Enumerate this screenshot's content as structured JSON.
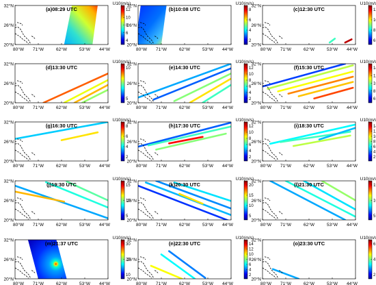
{
  "figure": {
    "lat_ticks": [
      "32°N",
      "26°N",
      "20°N"
    ],
    "lon_ticks": [
      "80°W",
      "71°W",
      "62°W",
      "53°W",
      "44°W"
    ],
    "colorbar_label": "U10(m/s)"
  },
  "chart_data": [
    {
      "type": "map-swath",
      "title": "(a)08:29 UTC",
      "lon_range": [
        -80,
        -44
      ],
      "lat_range": [
        20,
        32
      ],
      "colorbar_ticks": [
        "4",
        "6",
        "8",
        "10",
        "12"
      ],
      "swaths": [
        {
          "kind": "block",
          "corners": [
            [
              -58,
              32
            ],
            [
              -48,
              32
            ],
            [
              -50,
              20
            ],
            [
              -61,
              20
            ]
          ],
          "wind_range": [
            4,
            13
          ]
        }
      ]
    },
    {
      "type": "map-swath",
      "title": "(b)10:08 UTC",
      "lon_range": [
        -80,
        -44
      ],
      "lat_range": [
        20,
        32
      ],
      "colorbar_ticks": [
        "2",
        "4",
        "6",
        "8"
      ],
      "swaths": [
        {
          "kind": "block",
          "corners": [
            [
              -79,
              32
            ],
            [
              -69,
              32
            ],
            [
              -71,
              20
            ],
            [
              -81,
              20
            ]
          ],
          "wind_range": [
            1,
            9
          ]
        }
      ]
    },
    {
      "type": "map-swath",
      "title": "(c)12:30 UTC",
      "lon_range": [
        -80,
        -44
      ],
      "lat_range": [
        20,
        32
      ],
      "colorbar_ticks": [
        "6",
        "8",
        "10",
        "12"
      ],
      "swaths": [
        {
          "kind": "line",
          "from": [
            -54,
            20.6
          ],
          "to": [
            -52,
            21.8
          ],
          "wind": 6
        },
        {
          "kind": "line",
          "from": [
            -48,
            20.6
          ],
          "to": [
            -45.5,
            21.6
          ],
          "wind": 13
        }
      ]
    },
    {
      "type": "map-swath",
      "title": "(d)13:30 UTC",
      "lon_range": [
        -80,
        -44
      ],
      "lat_range": [
        20,
        32
      ],
      "colorbar_ticks": [
        "5",
        "10"
      ],
      "swaths": [
        {
          "kind": "line",
          "from": [
            -69,
            20
          ],
          "to": [
            -44,
            29
          ],
          "wind": 9
        },
        {
          "kind": "line",
          "from": [
            -61,
            20
          ],
          "to": [
            -44,
            27
          ],
          "wind": 7
        },
        {
          "kind": "line",
          "from": [
            -57,
            20
          ],
          "to": [
            -44,
            25.5
          ],
          "wind": 8
        },
        {
          "kind": "line",
          "from": [
            -54,
            20
          ],
          "to": [
            -44,
            24
          ],
          "wind": 6
        }
      ]
    },
    {
      "type": "map-swath",
      "title": "(e)14:30 UTC",
      "lon_range": [
        -80,
        -44
      ],
      "lat_range": [
        20,
        32
      ],
      "colorbar_ticks": [
        "2",
        "4",
        "6",
        "8",
        "10",
        "12"
      ],
      "swaths": [
        {
          "kind": "line",
          "from": [
            -80,
            21.6
          ],
          "to": [
            -44,
            32
          ],
          "wind": 4
        },
        {
          "kind": "line",
          "from": [
            -74,
            21
          ],
          "to": [
            -44,
            30.6
          ],
          "wind": 3
        },
        {
          "kind": "line",
          "from": [
            -66,
            20.5
          ],
          "to": [
            -44,
            29
          ],
          "wind": 7
        },
        {
          "kind": "line",
          "from": [
            -60,
            20
          ],
          "to": [
            -44,
            27.4
          ],
          "wind": 9
        },
        {
          "kind": "line",
          "from": [
            -55,
            20
          ],
          "to": [
            -44,
            25.5
          ],
          "wind": 6
        }
      ]
    },
    {
      "type": "map-swath",
      "title": "(f)15:30 UTC",
      "lon_range": [
        -80,
        -44
      ],
      "lat_range": [
        20,
        32
      ],
      "colorbar_ticks": [
        "6",
        "8",
        "10",
        "12",
        "14"
      ],
      "swaths": [
        {
          "kind": "line",
          "from": [
            -80,
            25
          ],
          "to": [
            -48,
            32
          ],
          "wind": 3
        },
        {
          "kind": "line",
          "from": [
            -78,
            24.3
          ],
          "to": [
            -45,
            31.5
          ],
          "wind": 9
        },
        {
          "kind": "line",
          "from": [
            -74,
            23.5
          ],
          "to": [
            -45,
            29.6
          ],
          "wind": 10
        },
        {
          "kind": "line",
          "from": [
            -70,
            22.8
          ],
          "to": [
            -45,
            28
          ],
          "wind": 12
        },
        {
          "kind": "line",
          "from": [
            -66,
            22
          ],
          "to": [
            -45,
            26.4
          ],
          "wind": 11
        },
        {
          "kind": "line",
          "from": [
            -60,
            21.3
          ],
          "to": [
            -45,
            24.6
          ],
          "wind": 13
        }
      ]
    },
    {
      "type": "map-swath",
      "title": "(g)16:30 UTC",
      "lon_range": [
        -80,
        -44
      ],
      "lat_range": [
        20,
        32
      ],
      "colorbar_ticks": [
        "2",
        "4",
        "6",
        "8"
      ],
      "swaths": [
        {
          "kind": "line",
          "from": [
            -80,
            26.8
          ],
          "to": [
            -44,
            32
          ],
          "wind": 3
        },
        {
          "kind": "line",
          "from": [
            -62,
            26.4
          ],
          "to": [
            -48,
            28.8
          ],
          "wind": 6
        }
      ]
    },
    {
      "type": "map-swath",
      "title": "(h)17:30 UTC",
      "lon_range": [
        -80,
        -44
      ],
      "lat_range": [
        20,
        32
      ],
      "colorbar_ticks": [
        "2",
        "4",
        "6",
        "8",
        "10",
        "12"
      ],
      "swaths": [
        {
          "kind": "line",
          "from": [
            -80,
            24.4
          ],
          "to": [
            -44,
            31.8
          ],
          "wind": 3
        },
        {
          "kind": "line",
          "from": [
            -76,
            24.8
          ],
          "to": [
            -44,
            30.6
          ],
          "wind": 6
        },
        {
          "kind": "line",
          "from": [
            -73,
            23.5
          ],
          "to": [
            -46,
            28.4
          ],
          "wind": 7
        },
        {
          "kind": "line",
          "from": [
            -68,
            25.4
          ],
          "to": [
            -55,
            27.4
          ],
          "wind": 12
        }
      ]
    },
    {
      "type": "map-swath",
      "title": "(i)18:30 UTC",
      "lon_range": [
        -80,
        -44
      ],
      "lat_range": [
        20,
        32
      ],
      "colorbar_ticks": [
        "2",
        "4",
        "6",
        "8",
        "10",
        "12",
        "14"
      ],
      "swaths": [
        {
          "kind": "line",
          "from": [
            -77,
            25.3
          ],
          "to": [
            -44,
            31.2
          ],
          "wind": 6
        },
        {
          "kind": "line",
          "from": [
            -73,
            25.8
          ],
          "to": [
            -46,
            29
          ],
          "wind": 7
        },
        {
          "kind": "line",
          "from": [
            -68,
            24.6
          ],
          "to": [
            -46,
            27.8
          ],
          "wind": 9
        },
        {
          "kind": "line",
          "from": [
            -58,
            26.6
          ],
          "to": [
            -44,
            30.2
          ],
          "wind": 5
        }
      ]
    },
    {
      "type": "map-swath",
      "title": "(j)19:30 UTC",
      "lon_range": [
        -80,
        -44
      ],
      "lat_range": [
        20,
        32
      ],
      "colorbar_ticks": [
        "5",
        "10",
        "15"
      ],
      "swaths": [
        {
          "kind": "line",
          "from": [
            -80,
            30.5
          ],
          "to": [
            -44,
            20.5
          ],
          "wind": 5
        },
        {
          "kind": "line",
          "from": [
            -80,
            28.7
          ],
          "to": [
            -61,
            25.6
          ],
          "wind": 12
        },
        {
          "kind": "line",
          "from": [
            -68,
            31.6
          ],
          "to": [
            -44,
            23.8
          ],
          "wind": 7
        },
        {
          "kind": "line",
          "from": [
            -60,
            31.8
          ],
          "to": [
            -44,
            26
          ],
          "wind": 8
        }
      ]
    },
    {
      "type": "map-swath",
      "title": "(k)20:30 UTC",
      "lon_range": [
        -80,
        -44
      ],
      "lat_range": [
        20,
        32
      ],
      "colorbar_ticks": [
        "5",
        "10",
        "15",
        "20"
      ],
      "swaths": [
        {
          "kind": "line",
          "from": [
            -80,
            30.5
          ],
          "to": [
            -44,
            19.5
          ],
          "wind": 4
        },
        {
          "kind": "line",
          "from": [
            -77,
            31.5
          ],
          "to": [
            -44,
            21.5
          ],
          "wind": 7
        },
        {
          "kind": "line",
          "from": [
            -73,
            32
          ],
          "to": [
            -44,
            23.5
          ],
          "wind": 6
        },
        {
          "kind": "line",
          "from": [
            -66,
            31.5
          ],
          "to": [
            -44,
            25.8
          ],
          "wind": 8
        },
        {
          "kind": "line",
          "from": [
            -64,
            28
          ],
          "to": [
            -55,
            25
          ],
          "wind": 15
        }
      ]
    },
    {
      "type": "map-swath",
      "title": "(l)21:30 UTC",
      "lon_range": [
        -80,
        -44
      ],
      "lat_range": [
        20,
        32
      ],
      "colorbar_ticks": [
        "5",
        "10",
        "15"
      ],
      "swaths": [
        {
          "kind": "line",
          "from": [
            -77,
            32
          ],
          "to": [
            -48,
            20
          ],
          "wind": 5
        },
        {
          "kind": "line",
          "from": [
            -71,
            32
          ],
          "to": [
            -44,
            21
          ],
          "wind": 7
        },
        {
          "kind": "line",
          "from": [
            -64,
            32
          ],
          "to": [
            -44,
            23.2
          ],
          "wind": 6
        },
        {
          "kind": "line",
          "from": [
            -57,
            32
          ],
          "to": [
            -44,
            26
          ],
          "wind": 9
        }
      ]
    },
    {
      "type": "map-swath",
      "title": "(m)21:37 UTC",
      "lon_range": [
        -80,
        -44
      ],
      "lat_range": [
        20,
        32
      ],
      "colorbar_ticks": [
        "10",
        "20",
        "30"
      ],
      "swaths": [
        {
          "kind": "block",
          "corners": [
            [
              -75,
              32
            ],
            [
              -64,
              32
            ],
            [
              -60,
              20
            ],
            [
              -71,
              20
            ]
          ],
          "wind_range": [
            2,
            36
          ]
        }
      ]
    },
    {
      "type": "map-swath",
      "title": "(n)22:30 UTC",
      "lon_range": [
        -80,
        -44
      ],
      "lat_range": [
        20,
        32
      ],
      "colorbar_ticks": [
        "2",
        "4",
        "6",
        "8",
        "10",
        "12",
        "14"
      ],
      "swaths": [
        {
          "kind": "line",
          "from": [
            -71,
            27.5
          ],
          "to": [
            -58,
            20
          ],
          "wind": 6
        },
        {
          "kind": "line",
          "from": [
            -68,
            28.5
          ],
          "to": [
            -54,
            20.3
          ],
          "wind": 4
        },
        {
          "kind": "line",
          "from": [
            -75,
            24
          ],
          "to": [
            -63,
            20
          ],
          "wind": 10
        }
      ]
    },
    {
      "type": "map-swath",
      "title": "(o)23:30 UTC",
      "lon_range": [
        -80,
        -44
      ],
      "lat_range": [
        20,
        32
      ],
      "colorbar_ticks": [
        "2",
        "4",
        "6"
      ],
      "swaths": [
        {
          "kind": "line",
          "from": [
            -76,
            23
          ],
          "to": [
            -66,
            20
          ],
          "wind": 2
        }
      ]
    }
  ]
}
